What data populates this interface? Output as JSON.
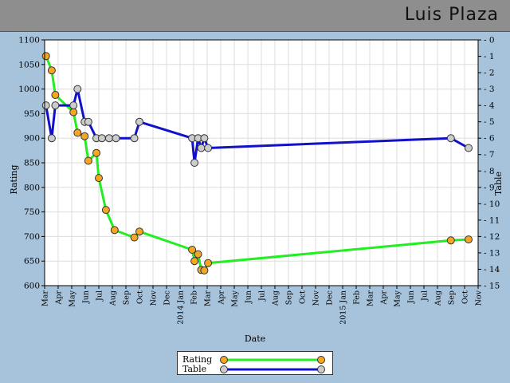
{
  "header": {
    "player_name": "Luis Plaza"
  },
  "chart_data": {
    "type": "line",
    "xlabel": "Date",
    "ylabel": "Rating",
    "y2label": "Table",
    "ylim": [
      600,
      1100
    ],
    "y2lim": [
      0,
      15
    ],
    "y2_inverted": true,
    "grid": true,
    "legend_position": "bottom-center",
    "x_ticks": [
      "Mar",
      "Apr",
      "May",
      "Jun",
      "Jul",
      "Aug",
      "Sep",
      "Oct",
      "Nov",
      "Dec",
      "2014 Jan",
      "Feb",
      "Mar",
      "Apr",
      "May",
      "Jun",
      "Jul",
      "Aug",
      "Sep",
      "Oct",
      "Nov",
      "Dec",
      "2015 Jan",
      "Feb",
      "Mar",
      "Apr",
      "May",
      "Jun",
      "Jul",
      "Aug",
      "Sep",
      "Oct",
      "Nov"
    ],
    "y_ticks": [
      600,
      650,
      700,
      750,
      800,
      850,
      900,
      950,
      1000,
      1050,
      1100
    ],
    "y2_ticks": [
      0,
      1,
      2,
      3,
      4,
      5,
      6,
      7,
      8,
      9,
      10,
      11,
      12,
      13,
      14,
      15
    ],
    "series": [
      {
        "name": "Rating",
        "axis": "left",
        "color": "#22ee22",
        "marker_color": "#f5a623",
        "points": [
          [
            "2013-03-04",
            1067
          ],
          [
            "2013-03-17",
            1038
          ],
          [
            "2013-03-25",
            988
          ],
          [
            "2013-05-05",
            953
          ],
          [
            "2013-05-14",
            911
          ],
          [
            "2013-05-30",
            904
          ],
          [
            "2013-06-08",
            854
          ],
          [
            "2013-06-26",
            870
          ],
          [
            "2013-07-01",
            819
          ],
          [
            "2013-07-17",
            754
          ],
          [
            "2013-08-06",
            713
          ],
          [
            "2013-09-20",
            698
          ],
          [
            "2013-10-01",
            710
          ],
          [
            "2014-01-28",
            673
          ],
          [
            "2014-02-03",
            650
          ],
          [
            "2014-02-11",
            664
          ],
          [
            "2014-02-18",
            632
          ],
          [
            "2014-02-25",
            631
          ],
          [
            "2014-03-03",
            646
          ],
          [
            "2015-08-31",
            692
          ],
          [
            "2015-10-10",
            694
          ]
        ]
      },
      {
        "name": "Table",
        "axis": "right",
        "color": "#1111cc",
        "marker_color": "#cccccc",
        "points": [
          [
            "2013-03-04",
            4
          ],
          [
            "2013-03-17",
            6
          ],
          [
            "2013-03-25",
            4
          ],
          [
            "2013-05-05",
            4
          ],
          [
            "2013-05-14",
            3
          ],
          [
            "2013-05-30",
            5
          ],
          [
            "2013-06-08",
            5
          ],
          [
            "2013-06-26",
            6
          ],
          [
            "2013-07-08",
            6
          ],
          [
            "2013-07-24",
            6
          ],
          [
            "2013-08-09",
            6
          ],
          [
            "2013-09-20",
            6
          ],
          [
            "2013-10-01",
            5
          ],
          [
            "2014-01-28",
            6
          ],
          [
            "2014-02-03",
            7.5
          ],
          [
            "2014-02-11",
            6
          ],
          [
            "2014-02-18",
            6.6
          ],
          [
            "2014-02-25",
            6
          ],
          [
            "2014-03-03",
            6.6
          ],
          [
            "2015-08-31",
            6
          ],
          [
            "2015-10-10",
            6.6
          ]
        ]
      }
    ]
  }
}
